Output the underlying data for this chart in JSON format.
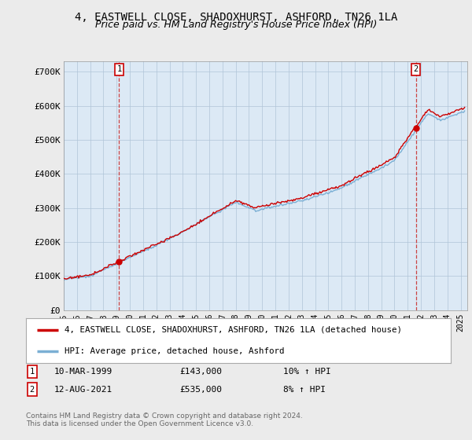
{
  "title": "4, EASTWELL CLOSE, SHADOXHURST, ASHFORD, TN26 1LA",
  "subtitle": "Price paid vs. HM Land Registry's House Price Index (HPI)",
  "ylabel_ticks": [
    "£0",
    "£100K",
    "£200K",
    "£300K",
    "£400K",
    "£500K",
    "£600K",
    "£700K"
  ],
  "ytick_vals": [
    0,
    100000,
    200000,
    300000,
    400000,
    500000,
    600000,
    700000
  ],
  "ylim": [
    0,
    730000
  ],
  "xlim_start": 1995.0,
  "xlim_end": 2025.5,
  "hpi_color": "#7bafd4",
  "price_color": "#cc0000",
  "point1_date": 1999.19,
  "point1_price": 143000,
  "point2_date": 2021.62,
  "point2_price": 535000,
  "legend_label1": "4, EASTWELL CLOSE, SHADOXHURST, ASHFORD, TN26 1LA (detached house)",
  "legend_label2": "HPI: Average price, detached house, Ashford",
  "footer1": "Contains HM Land Registry data © Crown copyright and database right 2024.",
  "footer2": "This data is licensed under the Open Government Licence v3.0.",
  "bg_color": "#ebebeb",
  "plot_bg_color": "#dce9f5",
  "grid_color": "#b0c4d8",
  "title_fontsize": 10,
  "subtitle_fontsize": 9
}
